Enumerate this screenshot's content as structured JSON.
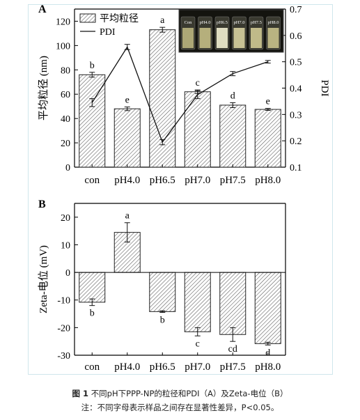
{
  "chart_data": [
    {
      "type": "bar",
      "panel": "A",
      "categories": [
        "con",
        "pH4.0",
        "pH6.5",
        "pH7.0",
        "pH7.5",
        "pH8.0"
      ],
      "ylabel": "平均粒径 (nm)",
      "ylabel_right": "PDI",
      "ylim": [
        0,
        130
      ],
      "yticks": [
        0,
        20,
        40,
        60,
        80,
        100,
        120
      ],
      "ylim_right": [
        0.1,
        0.7
      ],
      "yticks_right": [
        0.1,
        0.2,
        0.3,
        0.4,
        0.5,
        0.6,
        0.7
      ],
      "legend_position": "top-left",
      "series": [
        {
          "name": "平均粒径",
          "kind": "bar",
          "values": [
            76,
            48,
            113,
            62,
            51,
            47.5
          ],
          "errors": [
            2,
            1.5,
            2,
            1.5,
            2,
            0.8
          ],
          "labels": [
            "b",
            "e",
            "a",
            "c",
            "d",
            "e"
          ]
        },
        {
          "name": "PDI",
          "kind": "line",
          "values": [
            0.345,
            0.556,
            0.195,
            0.375,
            0.455,
            0.5
          ],
          "errors": [
            0.015,
            0.01,
            0.01,
            0.015,
            0.008,
            0.005
          ]
        }
      ],
      "inset": {
        "labels": [
          "Con",
          "pH4.0",
          "pH6.5",
          "pH7.0",
          "pH7.5",
          "pH8.0"
        ]
      }
    },
    {
      "type": "bar",
      "panel": "B",
      "categories": [
        "con",
        "pH4.0",
        "pH6.5",
        "pH7.0",
        "pH7.5",
        "pH8.0"
      ],
      "ylabel": "Zeta-电位 (mV)",
      "ylim": [
        -30,
        25
      ],
      "yticks": [
        -30,
        -20,
        -10,
        0,
        10,
        20
      ],
      "series": [
        {
          "name": "Zeta-电位",
          "kind": "bar",
          "values": [
            -10.8,
            14.5,
            -14.2,
            -21.5,
            -22.5,
            -25.8
          ],
          "errors": [
            1.2,
            3.5,
            0.3,
            1.5,
            2.5,
            0.5
          ],
          "labels": [
            "b",
            "a",
            "b",
            "c",
            "cd",
            "d"
          ]
        }
      ]
    }
  ],
  "caption": {
    "figure_no": "图 1",
    "title": "不同pH下PPP-NP的粒径和PDI（A）及Zeta-电位（B）",
    "note": "注：不同字母表示样品之间存在显著性差异，P<0.05。"
  }
}
